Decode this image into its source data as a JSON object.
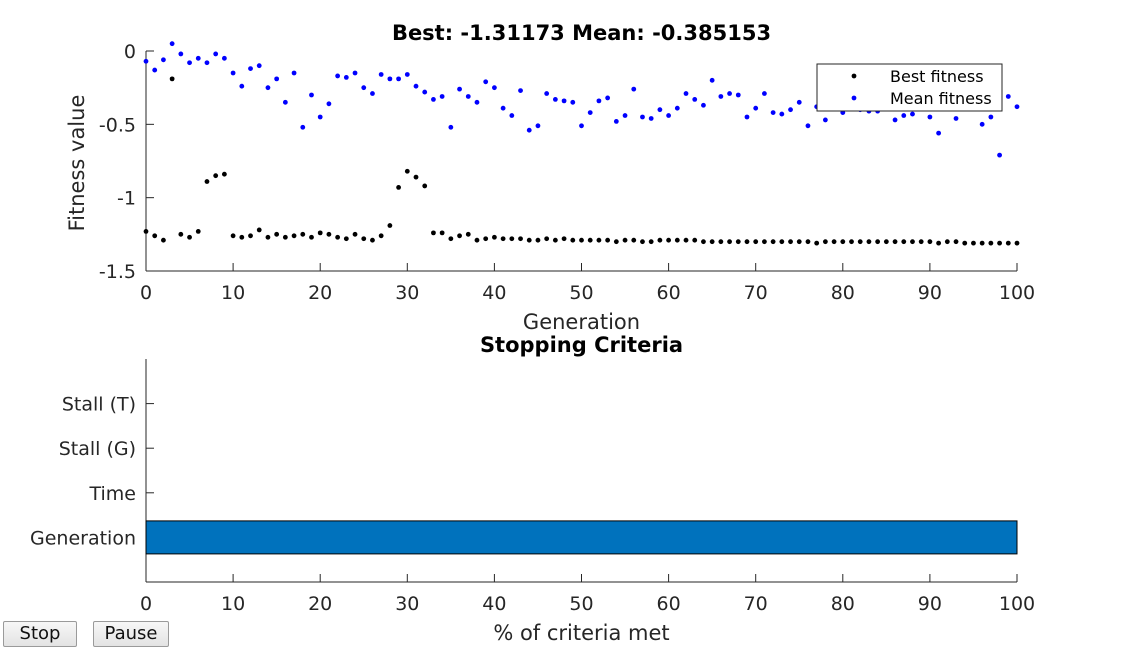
{
  "chart_data": [
    {
      "type": "scatter",
      "title": "Best: -1.31173 Mean: -0.385153",
      "xlabel": "Generation",
      "ylabel": "Fitness value",
      "xlim": [
        0,
        100
      ],
      "ylim": [
        -1.5,
        0
      ],
      "xticks": [
        0,
        10,
        20,
        30,
        40,
        50,
        60,
        70,
        80,
        90,
        100
      ],
      "yticks": [
        0,
        -0.5,
        -1,
        -1.5
      ],
      "ytick_labels": [
        "0",
        "-0.5",
        "-1",
        "-1.5"
      ],
      "grid": false,
      "legend_position": "top-right",
      "series": [
        {
          "name": "Best fitness",
          "color": "#000000",
          "x": [
            0,
            1,
            2,
            3,
            4,
            5,
            6,
            7,
            8,
            9,
            10,
            11,
            12,
            13,
            14,
            15,
            16,
            17,
            18,
            19,
            20,
            21,
            22,
            23,
            24,
            25,
            26,
            27,
            28,
            29,
            30,
            31,
            32,
            33,
            34,
            35,
            36,
            37,
            38,
            39,
            40,
            41,
            42,
            43,
            44,
            45,
            46,
            47,
            48,
            49,
            50,
            51,
            52,
            53,
            54,
            55,
            56,
            57,
            58,
            59,
            60,
            61,
            62,
            63,
            64,
            65,
            66,
            67,
            68,
            69,
            70,
            71,
            72,
            73,
            74,
            75,
            76,
            77,
            78,
            79,
            80,
            81,
            82,
            83,
            84,
            85,
            86,
            87,
            88,
            89,
            90,
            91,
            92,
            93,
            94,
            95,
            96,
            97,
            98,
            99,
            100
          ],
          "y": [
            -1.23,
            -1.26,
            -1.29,
            -0.19,
            -1.25,
            -1.27,
            -1.23,
            -0.89,
            -0.85,
            -0.84,
            -1.26,
            -1.27,
            -1.26,
            -1.22,
            -1.27,
            -1.25,
            -1.27,
            -1.26,
            -1.25,
            -1.27,
            -1.24,
            -1.25,
            -1.27,
            -1.28,
            -1.25,
            -1.28,
            -1.29,
            -1.26,
            -1.19,
            -0.93,
            -0.82,
            -0.86,
            -0.92,
            -1.24,
            -1.24,
            -1.28,
            -1.26,
            -1.25,
            -1.29,
            -1.28,
            -1.27,
            -1.28,
            -1.28,
            -1.28,
            -1.29,
            -1.29,
            -1.28,
            -1.29,
            -1.28,
            -1.29,
            -1.29,
            -1.29,
            -1.29,
            -1.29,
            -1.3,
            -1.29,
            -1.29,
            -1.3,
            -1.3,
            -1.29,
            -1.29,
            -1.29,
            -1.29,
            -1.29,
            -1.3,
            -1.3,
            -1.3,
            -1.3,
            -1.3,
            -1.3,
            -1.3,
            -1.3,
            -1.3,
            -1.3,
            -1.3,
            -1.3,
            -1.3,
            -1.31,
            -1.3,
            -1.3,
            -1.3,
            -1.3,
            -1.3,
            -1.3,
            -1.3,
            -1.3,
            -1.3,
            -1.3,
            -1.3,
            -1.3,
            -1.3,
            -1.31,
            -1.3,
            -1.3,
            -1.31,
            -1.31,
            -1.31,
            -1.31,
            -1.31,
            -1.31,
            -1.31
          ]
        },
        {
          "name": "Mean fitness",
          "color": "#0000ff",
          "x": [
            0,
            1,
            2,
            3,
            4,
            5,
            6,
            7,
            8,
            9,
            10,
            11,
            12,
            13,
            14,
            15,
            16,
            17,
            18,
            19,
            20,
            21,
            22,
            23,
            24,
            25,
            26,
            27,
            28,
            29,
            30,
            31,
            32,
            33,
            34,
            35,
            36,
            37,
            38,
            39,
            40,
            41,
            42,
            43,
            44,
            45,
            46,
            47,
            48,
            49,
            50,
            51,
            52,
            53,
            54,
            55,
            56,
            57,
            58,
            59,
            60,
            61,
            62,
            63,
            64,
            65,
            66,
            67,
            68,
            69,
            70,
            71,
            72,
            73,
            74,
            75,
            76,
            77,
            78,
            79,
            80,
            81,
            82,
            83,
            84,
            85,
            86,
            87,
            88,
            89,
            90,
            91,
            92,
            93,
            94,
            95,
            96,
            97,
            98,
            99,
            100
          ],
          "y": [
            -0.07,
            -0.13,
            -0.06,
            0.05,
            -0.02,
            -0.08,
            -0.05,
            -0.08,
            -0.02,
            -0.05,
            -0.15,
            -0.24,
            -0.12,
            -0.1,
            -0.25,
            -0.19,
            -0.35,
            -0.15,
            -0.52,
            -0.3,
            -0.45,
            -0.36,
            -0.17,
            -0.18,
            -0.15,
            -0.25,
            -0.29,
            -0.16,
            -0.19,
            -0.19,
            -0.16,
            -0.24,
            -0.28,
            -0.33,
            -0.31,
            -0.52,
            -0.26,
            -0.31,
            -0.35,
            -0.21,
            -0.25,
            -0.39,
            -0.44,
            -0.27,
            -0.54,
            -0.51,
            -0.29,
            -0.33,
            -0.34,
            -0.35,
            -0.51,
            -0.42,
            -0.34,
            -0.32,
            -0.48,
            -0.44,
            -0.26,
            -0.45,
            -0.46,
            -0.4,
            -0.44,
            -0.39,
            -0.29,
            -0.33,
            -0.37,
            -0.2,
            -0.31,
            -0.29,
            -0.3,
            -0.45,
            -0.39,
            -0.29,
            -0.42,
            -0.43,
            -0.4,
            -0.35,
            -0.51,
            -0.38,
            -0.47,
            -0.39,
            -0.42,
            -0.38,
            -0.4,
            -0.41,
            -0.41,
            -0.39,
            -0.47,
            -0.44,
            -0.43,
            -0.38,
            -0.45,
            -0.56,
            -0.38,
            -0.46,
            -0.39,
            -0.38,
            -0.5,
            -0.45,
            -0.71,
            -0.31,
            -0.38
          ]
        }
      ]
    },
    {
      "type": "bar",
      "orientation": "horizontal",
      "title": "Stopping Criteria",
      "xlabel": "% of criteria met",
      "ylabel": "",
      "xlim": [
        0,
        100
      ],
      "xticks": [
        0,
        10,
        20,
        30,
        40,
        50,
        60,
        70,
        80,
        90,
        100
      ],
      "categories": [
        "Stall (T)",
        "Stall (G)",
        "Time",
        "Generation"
      ],
      "values": [
        0,
        0,
        0,
        100
      ],
      "bar_color": "#0072bd",
      "grid": false
    }
  ],
  "controls": {
    "stop_label": "Stop",
    "pause_label": "Pause"
  }
}
